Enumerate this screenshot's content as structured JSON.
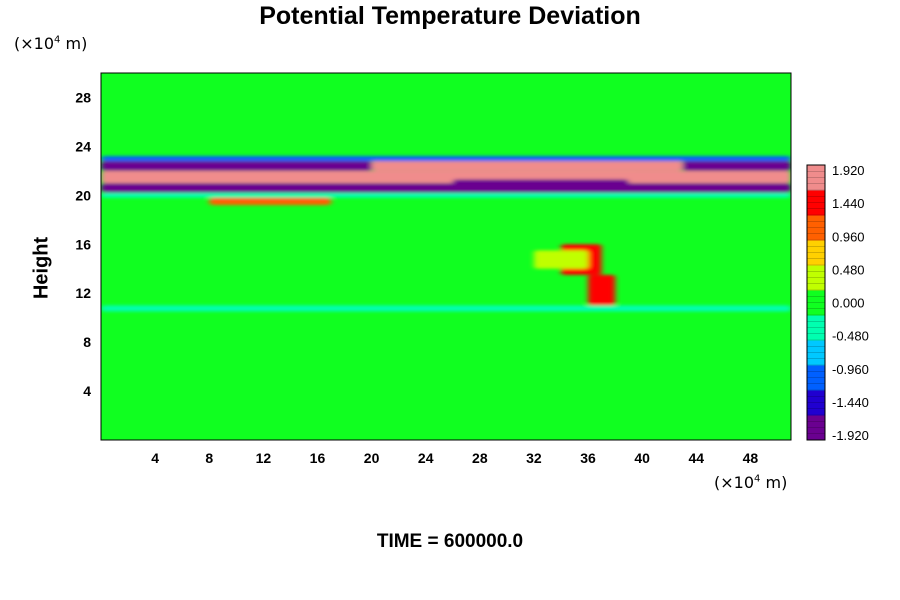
{
  "chart_data": {
    "type": "heatmap",
    "title": "Potential Temperature Deviation",
    "ylabel": "Height",
    "x_unit": {
      "prefix": "(×10",
      "exp": "4",
      "suffix": " m)"
    },
    "y_unit": {
      "prefix": "(×10",
      "exp": "4",
      "suffix": " m)"
    },
    "xlim": [
      0,
      51
    ],
    "ylim": [
      0,
      30
    ],
    "x_ticks": [
      4,
      8,
      12,
      16,
      20,
      24,
      28,
      32,
      36,
      40,
      44,
      48
    ],
    "y_ticks": [
      4,
      8,
      12,
      16,
      20,
      24,
      28
    ],
    "colorbar": {
      "range": [
        -1.92,
        1.92
      ],
      "tick_labels": [
        "1.920",
        "1.440",
        "0.960",
        "0.480",
        "0.000",
        "-0.480",
        "-0.960",
        "-1.440",
        "-1.920"
      ],
      "colors": [
        "#6a0090",
        "#2000d0",
        "#0060ff",
        "#00c8ff",
        "#00ffb0",
        "#10ff20",
        "#c0ff00",
        "#ffd000",
        "#ff6000",
        "#ff0000",
        "#f08c8c"
      ]
    },
    "background_value": 0.05,
    "features": [
      {
        "x": [
          0,
          51
        ],
        "y": [
          20.2,
          21.0
        ],
        "value": -1.92
      },
      {
        "x": [
          0,
          51
        ],
        "y": [
          21.0,
          22.0
        ],
        "value": 1.92
      },
      {
        "x": [
          0,
          20
        ],
        "y": [
          22.0,
          22.8
        ],
        "value": -1.92
      },
      {
        "x": [
          20,
          43
        ],
        "y": [
          22.0,
          22.8
        ],
        "value": 1.92
      },
      {
        "x": [
          43,
          51
        ],
        "y": [
          22.0,
          22.8
        ],
        "value": -1.92
      },
      {
        "x": [
          26,
          39
        ],
        "y": [
          20.8,
          21.3
        ],
        "value": -1.92
      },
      {
        "x": [
          0,
          51
        ],
        "y": [
          22.8,
          23.2
        ],
        "value": -0.96
      },
      {
        "x": [
          0,
          51
        ],
        "y": [
          19.8,
          20.2
        ],
        "value": -0.48
      },
      {
        "x": [
          8,
          17
        ],
        "y": [
          19.2,
          19.8
        ],
        "value": 1.2
      },
      {
        "x": [
          34,
          37
        ],
        "y": [
          13.5,
          16.0
        ],
        "value": 1.5
      },
      {
        "x": [
          36,
          38
        ],
        "y": [
          11.0,
          13.5
        ],
        "value": 1.3
      },
      {
        "x": [
          32,
          36
        ],
        "y": [
          14.0,
          15.5
        ],
        "value": 0.5
      },
      {
        "x": [
          0,
          51
        ],
        "y": [
          10.5,
          11.0
        ],
        "value": -0.2
      }
    ],
    "grid": false,
    "legend": "right"
  },
  "time_label": "TIME = 600000.0"
}
